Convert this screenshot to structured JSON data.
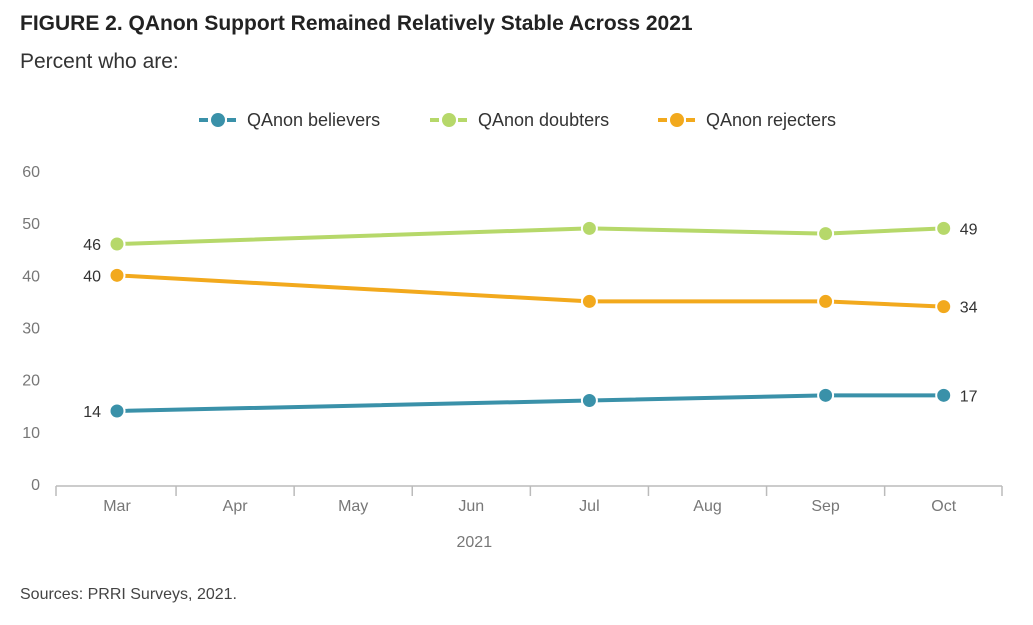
{
  "title": "FIGURE 2. QAnon Support Remained Relatively Stable Across 2021",
  "subtitle": "Percent who are:",
  "source": "Sources: PRRI Surveys, 2021.",
  "chart_data": {
    "type": "line",
    "title": "FIGURE 2. QAnon Support Remained Relatively Stable Across 2021",
    "subtitle": "Percent who are:",
    "xlabel": "2021",
    "ylabel": "",
    "categories": [
      "Mar",
      "Apr",
      "May",
      "Jun",
      "Jul",
      "Aug",
      "Sep",
      "Oct"
    ],
    "ylim": [
      0,
      60
    ],
    "yticks": [
      0,
      10,
      20,
      30,
      40,
      50,
      60
    ],
    "grid": false,
    "legend_position": "top-center",
    "series": [
      {
        "name": "QAnon believers",
        "color": "#3a91a9",
        "points": [
          {
            "x": "Mar",
            "y": 14
          },
          {
            "x": "Jul",
            "y": 16
          },
          {
            "x": "Sep",
            "y": 17
          },
          {
            "x": "Oct",
            "y": 17
          }
        ],
        "labels": [
          {
            "x": "Mar",
            "y": 14,
            "text": "14",
            "side": "left"
          },
          {
            "x": "Oct",
            "y": 17,
            "text": "17",
            "side": "right"
          }
        ]
      },
      {
        "name": "QAnon doubters",
        "color": "#b6d86a",
        "points": [
          {
            "x": "Mar",
            "y": 46
          },
          {
            "x": "Jul",
            "y": 49
          },
          {
            "x": "Sep",
            "y": 48
          },
          {
            "x": "Oct",
            "y": 49
          }
        ],
        "labels": [
          {
            "x": "Mar",
            "y": 46,
            "text": "46",
            "side": "left"
          },
          {
            "x": "Oct",
            "y": 49,
            "text": "49",
            "side": "right"
          }
        ]
      },
      {
        "name": "QAnon rejecters",
        "color": "#f2a91d",
        "points": [
          {
            "x": "Mar",
            "y": 40
          },
          {
            "x": "Jul",
            "y": 35
          },
          {
            "x": "Sep",
            "y": 35
          },
          {
            "x": "Oct",
            "y": 34
          }
        ],
        "labels": [
          {
            "x": "Mar",
            "y": 40,
            "text": "40",
            "side": "left"
          },
          {
            "x": "Oct",
            "y": 34,
            "text": "34",
            "side": "right"
          }
        ]
      }
    ]
  }
}
